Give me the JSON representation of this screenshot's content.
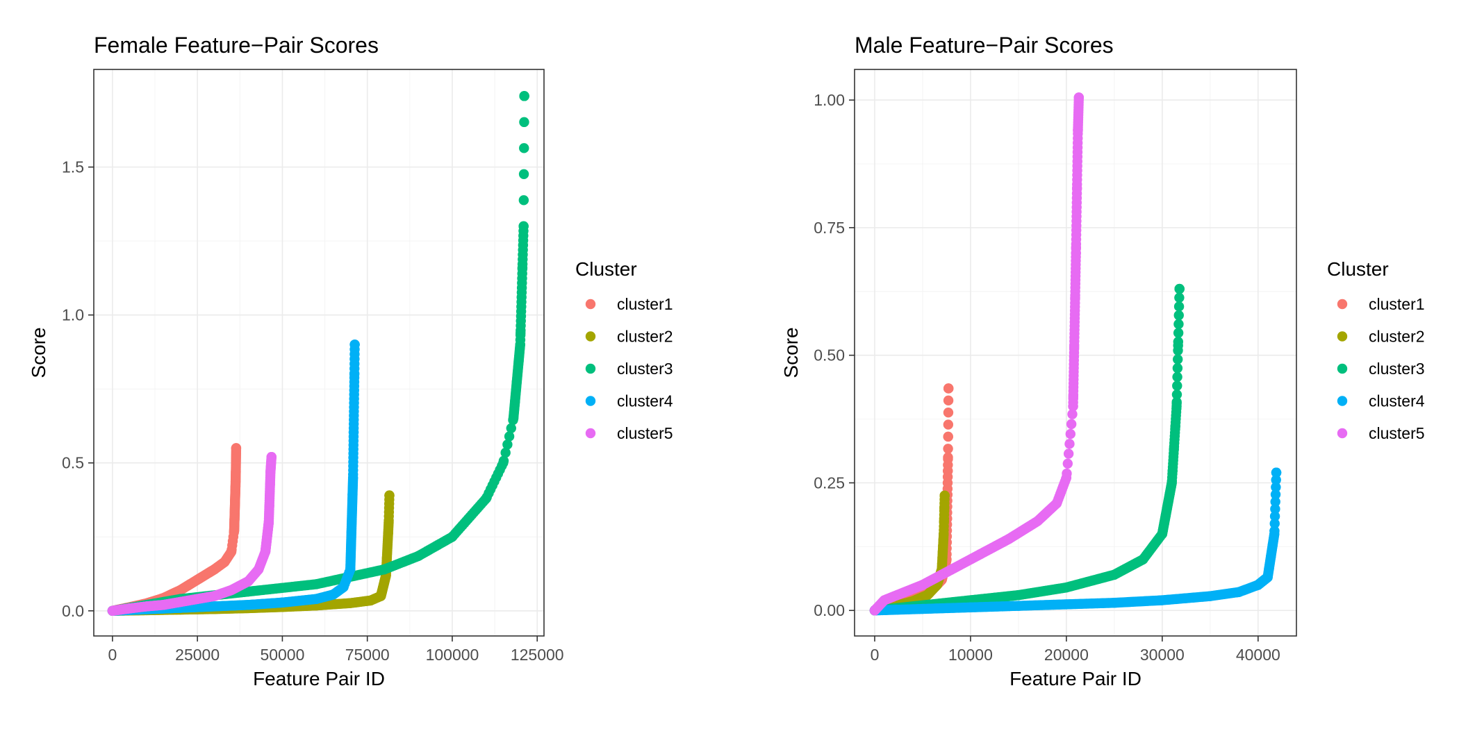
{
  "legend_title": "Cluster",
  "colors": {
    "cluster1": "#F8766D",
    "cluster2": "#A3A500",
    "cluster3": "#00BF7D",
    "cluster4": "#00B0F6",
    "cluster5": "#E76BF3"
  },
  "chart_data": [
    {
      "type": "scatter",
      "title": "Female Feature−Pair Scores",
      "xlabel": "Feature Pair ID",
      "ylabel": "Score",
      "xlim": [
        -5500,
        127000
      ],
      "ylim": [
        -0.085,
        1.83
      ],
      "x_ticks": [
        0,
        25000,
        50000,
        75000,
        100000,
        125000
      ],
      "x_tick_labels": [
        "0",
        "25000",
        "50000",
        "75000",
        "100000",
        "125000"
      ],
      "y_ticks": [
        0.0,
        0.5,
        1.0,
        1.5
      ],
      "y_tick_labels": [
        "0.0",
        "0.5",
        "1.0",
        "1.5"
      ],
      "grid": true,
      "legend_position": "right",
      "series": [
        {
          "name": "cluster1",
          "x": [
            0,
            5000,
            10000,
            15000,
            20000,
            25000,
            30000,
            33000,
            35000,
            35800,
            36200,
            36300,
            36400
          ],
          "y": [
            0.0,
            0.012,
            0.025,
            0.043,
            0.07,
            0.105,
            0.14,
            0.165,
            0.2,
            0.27,
            0.42,
            0.47,
            0.55
          ]
        },
        {
          "name": "cluster2",
          "x": [
            0,
            10000,
            20000,
            30000,
            40000,
            50000,
            60000,
            70000,
            76000,
            79000,
            80500,
            81300,
            81500
          ],
          "y": [
            0.0,
            0.002,
            0.004,
            0.006,
            0.009,
            0.013,
            0.018,
            0.026,
            0.035,
            0.05,
            0.12,
            0.3,
            0.39
          ]
        },
        {
          "name": "cluster3",
          "x": [
            0,
            20000,
            40000,
            60000,
            80000,
            90000,
            100000,
            110000,
            115000,
            118000,
            120000,
            121000,
            121200
          ],
          "y": [
            0.0,
            0.04,
            0.065,
            0.09,
            0.14,
            0.185,
            0.25,
            0.38,
            0.5,
            0.65,
            0.9,
            1.3,
            1.74
          ]
        },
        {
          "name": "cluster4",
          "x": [
            0,
            10000,
            20000,
            30000,
            40000,
            50000,
            60000,
            65000,
            68000,
            70000,
            70800,
            71200,
            71300
          ],
          "y": [
            0.0,
            0.005,
            0.01,
            0.015,
            0.02,
            0.028,
            0.04,
            0.055,
            0.08,
            0.14,
            0.45,
            0.8,
            0.9
          ]
        },
        {
          "name": "cluster5",
          "x": [
            0,
            5000,
            10000,
            15000,
            20000,
            25000,
            30000,
            35000,
            40000,
            43000,
            45000,
            46000,
            46500,
            46800
          ],
          "y": [
            0.0,
            0.008,
            0.015,
            0.02,
            0.03,
            0.04,
            0.05,
            0.07,
            0.1,
            0.14,
            0.2,
            0.3,
            0.47,
            0.52
          ]
        }
      ]
    },
    {
      "type": "scatter",
      "title": "Male Feature−Pair Scores",
      "xlabel": "Feature Pair ID",
      "ylabel": "Score",
      "xlim": [
        -2100,
        44000
      ],
      "ylim": [
        -0.05,
        1.06
      ],
      "x_ticks": [
        0,
        10000,
        20000,
        30000,
        40000
      ],
      "x_tick_labels": [
        "0",
        "10000",
        "20000",
        "30000",
        "40000"
      ],
      "y_ticks": [
        0.0,
        0.25,
        0.5,
        0.75,
        1.0
      ],
      "y_tick_labels": [
        "0.00",
        "0.25",
        "0.50",
        "0.75",
        "1.00"
      ],
      "grid": true,
      "legend_position": "right",
      "series": [
        {
          "name": "cluster1",
          "x": [
            0,
            2000,
            4000,
            6000,
            7000,
            7500,
            7650,
            7700
          ],
          "y": [
            0.0,
            0.01,
            0.022,
            0.04,
            0.06,
            0.1,
            0.3,
            0.435
          ]
        },
        {
          "name": "cluster2",
          "x": [
            0,
            2000,
            4000,
            5500,
            6500,
            7000,
            7200,
            7300
          ],
          "y": [
            0.0,
            0.008,
            0.018,
            0.03,
            0.05,
            0.08,
            0.15,
            0.225
          ]
        },
        {
          "name": "cluster3",
          "x": [
            0,
            5000,
            10000,
            15000,
            20000,
            25000,
            28000,
            30000,
            31000,
            31500,
            31800
          ],
          "y": [
            0.0,
            0.01,
            0.02,
            0.03,
            0.045,
            0.07,
            0.1,
            0.15,
            0.25,
            0.4,
            0.63
          ]
        },
        {
          "name": "cluster4",
          "x": [
            0,
            5000,
            10000,
            15000,
            20000,
            25000,
            30000,
            35000,
            38000,
            40000,
            41000,
            41700,
            41900
          ],
          "y": [
            0.0,
            0.003,
            0.006,
            0.009,
            0.012,
            0.015,
            0.02,
            0.028,
            0.036,
            0.05,
            0.065,
            0.15,
            0.27
          ]
        },
        {
          "name": "cluster5",
          "x": [
            0,
            1000,
            3000,
            5000,
            8000,
            11000,
            14000,
            17000,
            19000,
            20000,
            20700,
            21000,
            21200,
            21300
          ],
          "y": [
            0.0,
            0.02,
            0.035,
            0.05,
            0.08,
            0.11,
            0.14,
            0.175,
            0.21,
            0.26,
            0.4,
            0.7,
            0.94,
            1.005
          ]
        }
      ]
    }
  ]
}
